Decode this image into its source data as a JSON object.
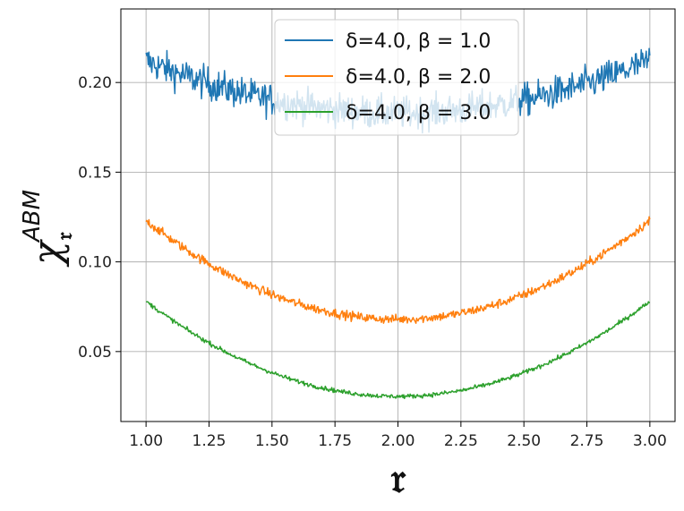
{
  "chart_data": {
    "type": "line",
    "title": "",
    "xlabel": "𝔯",
    "ylabel": "χ",
    "ylabel_superscript": "ABM",
    "ylabel_subscript": "𝔯",
    "xlim": [
      0.9,
      3.1
    ],
    "ylim": [
      0.011,
      0.241
    ],
    "xticks": [
      "1.00",
      "1.25",
      "1.50",
      "1.75",
      "2.00",
      "2.25",
      "2.50",
      "2.75",
      "3.00"
    ],
    "yticks": [
      "0.05",
      "0.10",
      "0.15",
      "0.20"
    ],
    "grid": true,
    "legend_position": "top-center",
    "x_range": [
      1.0,
      3.0
    ],
    "series": [
      {
        "name": "ẟ=4.0, β = 1.0",
        "color": "#1f77b4",
        "endpoints": 0.212,
        "minimum": 0.183,
        "noise": 0.009
      },
      {
        "name": "ẟ=4.0, β = 2.0",
        "color": "#ff7f0e",
        "endpoints": 0.123,
        "minimum": 0.068,
        "noise": 0.0025
      },
      {
        "name": "ẟ=4.0, β = 3.0",
        "color": "#2ca02c",
        "endpoints": 0.078,
        "minimum": 0.025,
        "noise": 0.0012
      }
    ]
  }
}
